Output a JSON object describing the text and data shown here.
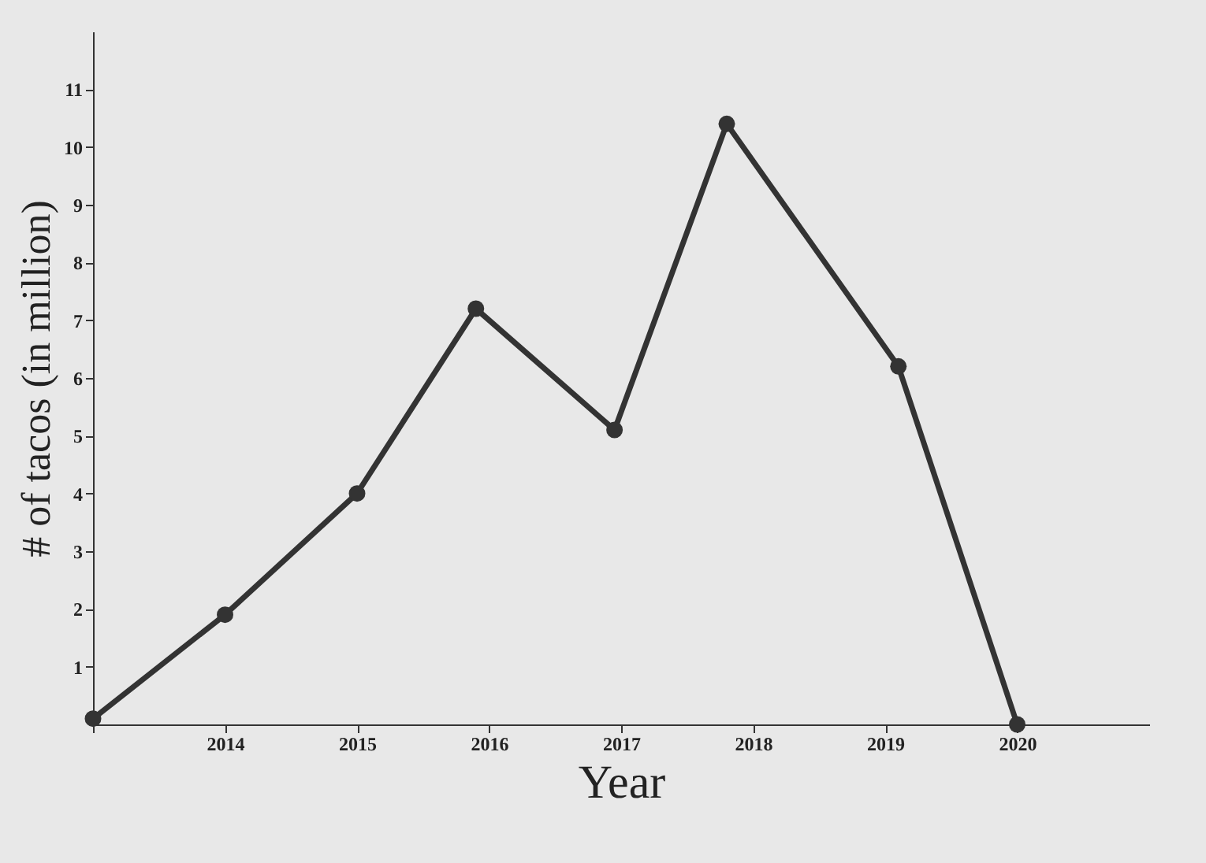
{
  "chart_data": {
    "type": "line",
    "xlabel": "Year",
    "ylabel": "# of tacos (in million)",
    "x": [
      2013,
      2014,
      2015,
      2015.9,
      2016.95,
      2017.8,
      2019.1,
      2020
    ],
    "series": [
      {
        "color": "#333333",
        "values": [
          0.1,
          1.9,
          4.0,
          7.2,
          5.1,
          10.4,
          6.2,
          0
        ]
      }
    ],
    "xlim": [
      2013,
      2021
    ],
    "xticks": [
      {
        "value": 2013,
        "label": null
      },
      2014,
      2015,
      2016,
      2017,
      2018,
      2019,
      2020
    ],
    "ylim": [
      0,
      12
    ],
    "yticks": [
      1,
      2,
      3,
      4,
      5,
      6,
      7,
      8,
      9,
      10,
      11
    ],
    "grid": false,
    "marker": "circle",
    "line_style": "solid"
  }
}
